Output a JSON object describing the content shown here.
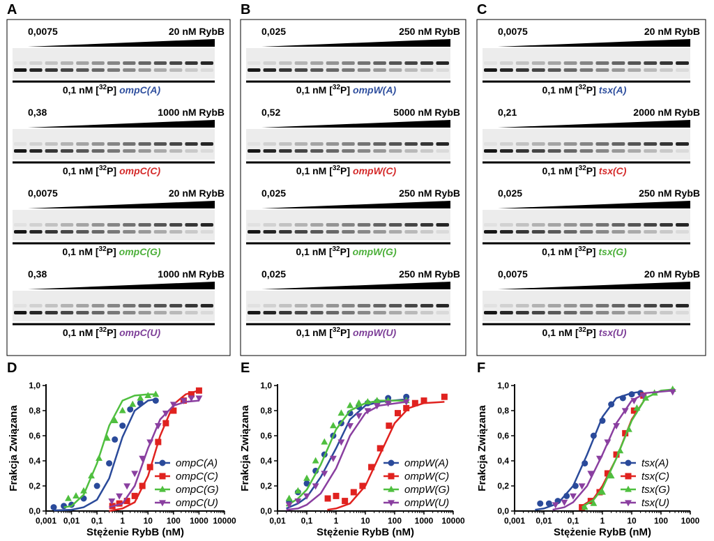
{
  "gels": [
    {
      "panel": "A",
      "blots": [
        {
          "low": "0,0075",
          "high": "20 nM RybB",
          "probe": "0,1 nM [",
          "isotope": "32",
          "element": "P]",
          "target": "ompC(A)",
          "target_color": "#2f4f9e"
        },
        {
          "low": "0,38",
          "high": "1000 nM RybB",
          "probe": "0,1 nM [",
          "isotope": "32",
          "element": "P]",
          "target": "ompC(C)",
          "target_color": "#d42a2a"
        },
        {
          "low": "0,0075",
          "high": "20 nM RybB",
          "probe": "0,1 nM [",
          "isotope": "32",
          "element": "P]",
          "target": "ompC(G)",
          "target_color": "#4caf3a"
        },
        {
          "low": "0,38",
          "high": "1000 nM RybB",
          "probe": "0,1 nM [",
          "isotope": "32",
          "element": "P]",
          "target": "ompC(U)",
          "target_color": "#7d3f98"
        }
      ]
    },
    {
      "panel": "B",
      "blots": [
        {
          "low": "0,025",
          "high": "250 nM RybB",
          "probe": "0,1 nM [",
          "isotope": "32",
          "element": "P]",
          "target": "ompW(A)",
          "target_color": "#2f4f9e"
        },
        {
          "low": "0,52",
          "high": "5000 nM RybB",
          "probe": "0,1 nM [",
          "isotope": "32",
          "element": "P]",
          "target": "ompW(C)",
          "target_color": "#d42a2a"
        },
        {
          "low": "0,025",
          "high": "250 nM RybB",
          "probe": "0,1 nM [",
          "isotope": "32",
          "element": "P]",
          "target": "ompW(G)",
          "target_color": "#4caf3a"
        },
        {
          "low": "0,025",
          "high": "250 nM RybB",
          "probe": "0,1 nM [",
          "isotope": "32",
          "element": "P]",
          "target": "ompW(U)",
          "target_color": "#7d3f98"
        }
      ]
    },
    {
      "panel": "C",
      "blots": [
        {
          "low": "0,0075",
          "high": "20 nM RybB",
          "probe": "0,1 nM [",
          "isotope": "32",
          "element": "P]",
          "target": "tsx(A)",
          "target_color": "#2f4f9e"
        },
        {
          "low": "0,21",
          "high": "2000 nM RybB",
          "probe": "0,1 nM [",
          "isotope": "32",
          "element": "P]",
          "target": "tsx(C)",
          "target_color": "#d42a2a"
        },
        {
          "low": "0,025",
          "high": "250 nM RybB",
          "probe": "0,1 nM [",
          "isotope": "32",
          "element": "P]",
          "target": "tsx(G)",
          "target_color": "#4caf3a"
        },
        {
          "low": "0,0075",
          "high": "20 nM RybB",
          "probe": "0,1 nM [",
          "isotope": "32",
          "element": "P]",
          "target": "tsx(U)",
          "target_color": "#7d3f98"
        }
      ]
    }
  ],
  "chart_data": [
    {
      "type": "scatter",
      "panel": "D",
      "x_label": "Stężenie RybB (nM)",
      "y_label": "Frakcja Związana",
      "log_x": true,
      "legend": "lower right",
      "xlim": [
        0.001,
        10000
      ],
      "ylim": [
        0,
        1.0
      ],
      "xticks": [
        {
          "value": 0.001,
          "label": "0,001"
        },
        {
          "value": 0.01,
          "label": "0,01"
        },
        {
          "value": 0.1,
          "label": "0,1"
        },
        1,
        10,
        100,
        1000,
        10000
      ],
      "yticks": [
        {
          "value": 0,
          "label": "0,0"
        },
        {
          "value": 0.2,
          "label": "0,2"
        },
        {
          "value": 0.4,
          "label": "0,4"
        },
        {
          "value": 0.6,
          "label": "0,6"
        },
        {
          "value": 0.8,
          "label": "0,8"
        },
        {
          "value": 1.0,
          "label": "1,0"
        }
      ],
      "series": [
        {
          "name": "ompC(A)",
          "color": "#2a4a9a",
          "marker": "circle",
          "x": [
            0.002,
            0.005,
            0.01,
            0.03,
            0.1,
            0.3,
            0.5,
            1,
            2,
            5,
            20
          ],
          "values": [
            0.03,
            0.04,
            0.05,
            0.1,
            0.2,
            0.38,
            0.57,
            0.68,
            0.81,
            0.86,
            0.88
          ],
          "curve_x": [
            0.002,
            0.01,
            0.03,
            0.1,
            0.3,
            1,
            3,
            10,
            20
          ],
          "curve_values": [
            0.005,
            0.01,
            0.03,
            0.09,
            0.26,
            0.59,
            0.8,
            0.88,
            0.89
          ]
        },
        {
          "name": "ompC(C)",
          "color": "#e0221f",
          "marker": "square",
          "x": [
            0.4,
            0.75,
            1.5,
            3,
            6,
            12,
            25,
            50,
            100,
            250,
            500,
            1000
          ],
          "values": [
            0.04,
            0.06,
            0.08,
            0.12,
            0.2,
            0.35,
            0.55,
            0.7,
            0.8,
            0.88,
            0.93,
            0.96
          ],
          "curve_x": [
            0.3,
            1,
            3,
            10,
            30,
            100,
            300,
            1000
          ],
          "curve_values": [
            0.0,
            0.02,
            0.07,
            0.28,
            0.6,
            0.85,
            0.93,
            0.96
          ]
        },
        {
          "name": "ompC(G)",
          "color": "#4fbf3f",
          "marker": "triangle-up",
          "x": [
            0.0075,
            0.015,
            0.03,
            0.06,
            0.12,
            0.25,
            0.5,
            1,
            2.5,
            5,
            10,
            20
          ],
          "values": [
            0.1,
            0.12,
            0.16,
            0.28,
            0.42,
            0.58,
            0.72,
            0.8,
            0.85,
            0.9,
            0.92,
            0.93
          ],
          "curve_x": [
            0.005,
            0.01,
            0.03,
            0.1,
            0.3,
            1,
            3,
            10,
            20
          ],
          "curve_values": [
            0.03,
            0.04,
            0.13,
            0.38,
            0.68,
            0.88,
            0.92,
            0.93,
            0.93
          ]
        },
        {
          "name": "ompC(U)",
          "color": "#8a3fa0",
          "marker": "triangle-down",
          "x": [
            0.38,
            0.75,
            1.5,
            3,
            6,
            12,
            25,
            50,
            100,
            250,
            500,
            1000
          ],
          "values": [
            0.08,
            0.12,
            0.2,
            0.3,
            0.42,
            0.55,
            0.68,
            0.78,
            0.85,
            0.88,
            0.9,
            0.9
          ],
          "curve_x": [
            0.3,
            1,
            3,
            10,
            30,
            100,
            300,
            1000
          ],
          "curve_values": [
            0.03,
            0.06,
            0.2,
            0.5,
            0.73,
            0.84,
            0.87,
            0.88
          ]
        }
      ]
    },
    {
      "type": "scatter",
      "panel": "E",
      "x_label": "Stężenie RybB (nM)",
      "y_label": "Frakcja Związana",
      "log_x": true,
      "legend": "lower right",
      "xlim": [
        0.01,
        10000
      ],
      "ylim": [
        0,
        1.0
      ],
      "xticks": [
        {
          "value": 0.01,
          "label": "0,01"
        },
        {
          "value": 0.1,
          "label": "0,1"
        },
        1,
        10,
        100,
        1000,
        10000
      ],
      "yticks": [
        {
          "value": 0,
          "label": "0,0"
        },
        {
          "value": 0.2,
          "label": "0,2"
        },
        {
          "value": 0.4,
          "label": "0,4"
        },
        {
          "value": 0.6,
          "label": "0,6"
        },
        {
          "value": 0.8,
          "label": "0,8"
        },
        {
          "value": 1.0,
          "label": "1,0"
        }
      ],
      "series": [
        {
          "name": "ompW(A)",
          "color": "#2a4a9a",
          "marker": "circle",
          "x": [
            0.025,
            0.05,
            0.1,
            0.2,
            0.4,
            0.8,
            1.5,
            3,
            6,
            12,
            25,
            60,
            250
          ],
          "values": [
            0.08,
            0.15,
            0.22,
            0.32,
            0.45,
            0.6,
            0.7,
            0.78,
            0.83,
            0.86,
            0.87,
            0.9,
            0.91
          ],
          "curve_x": [
            0.02,
            0.05,
            0.1,
            0.3,
            1,
            3,
            10,
            30,
            250
          ],
          "curve_values": [
            0.02,
            0.06,
            0.11,
            0.27,
            0.5,
            0.73,
            0.84,
            0.87,
            0.89
          ]
        },
        {
          "name": "ompW(C)",
          "color": "#e0221f",
          "marker": "square",
          "x": [
            0.52,
            1,
            2,
            4,
            8,
            16,
            32,
            64,
            128,
            250,
            500,
            1000,
            5000
          ],
          "values": [
            0.1,
            0.12,
            0.08,
            0.15,
            0.2,
            0.35,
            0.5,
            0.68,
            0.78,
            0.82,
            0.86,
            0.88,
            0.91
          ],
          "curve_x": [
            0.5,
            1,
            3,
            10,
            30,
            100,
            300,
            1000,
            5000
          ],
          "curve_values": [
            0.01,
            0.02,
            0.06,
            0.2,
            0.44,
            0.7,
            0.82,
            0.86,
            0.87
          ]
        },
        {
          "name": "ompW(G)",
          "color": "#4fbf3f",
          "marker": "triangle-up",
          "x": [
            0.025,
            0.05,
            0.1,
            0.2,
            0.4,
            0.8,
            1.5,
            3,
            6,
            12,
            25,
            60,
            250
          ],
          "values": [
            0.1,
            0.16,
            0.26,
            0.4,
            0.55,
            0.68,
            0.78,
            0.84,
            0.86,
            0.87,
            0.88,
            0.88,
            0.88
          ],
          "curve_x": [
            0.02,
            0.05,
            0.1,
            0.3,
            1,
            3,
            10,
            30,
            250
          ],
          "curve_values": [
            0.04,
            0.1,
            0.17,
            0.37,
            0.65,
            0.8,
            0.86,
            0.88,
            0.88
          ]
        },
        {
          "name": "ompW(U)",
          "color": "#8a3fa0",
          "marker": "triangle-down",
          "x": [
            0.025,
            0.05,
            0.1,
            0.2,
            0.4,
            0.8,
            1.5,
            3,
            6,
            12,
            25,
            60,
            250
          ],
          "values": [
            0.05,
            0.08,
            0.12,
            0.2,
            0.3,
            0.42,
            0.55,
            0.68,
            0.76,
            0.8,
            0.84,
            0.86,
            0.87
          ],
          "curve_x": [
            0.02,
            0.05,
            0.1,
            0.3,
            1,
            3,
            10,
            30,
            250
          ],
          "curve_values": [
            0.01,
            0.02,
            0.05,
            0.14,
            0.34,
            0.6,
            0.78,
            0.84,
            0.87
          ]
        }
      ]
    },
    {
      "type": "scatter",
      "panel": "F",
      "x_label": "Stężenie RybB (nM)",
      "y_label": "Frakcja Związana",
      "log_x": true,
      "legend": "lower right",
      "xlim": [
        0.001,
        1000
      ],
      "ylim": [
        0,
        1.0
      ],
      "xticks": [
        {
          "value": 0.001,
          "label": "0,001"
        },
        {
          "value": 0.01,
          "label": "0,01"
        },
        {
          "value": 0.1,
          "label": "0,1"
        },
        1,
        10,
        100,
        1000
      ],
      "yticks": [
        {
          "value": 0,
          "label": "0,0"
        },
        {
          "value": 0.2,
          "label": "0,2"
        },
        {
          "value": 0.4,
          "label": "0,4"
        },
        {
          "value": 0.6,
          "label": "0,6"
        },
        {
          "value": 0.8,
          "label": "0,8"
        },
        {
          "value": 1.0,
          "label": "1,0"
        }
      ],
      "series": [
        {
          "name": "tsx(A)",
          "color": "#2a4a9a",
          "marker": "circle",
          "x": [
            0.0075,
            0.015,
            0.03,
            0.06,
            0.12,
            0.25,
            0.5,
            1,
            2,
            5,
            10,
            20
          ],
          "values": [
            0.06,
            0.06,
            0.08,
            0.12,
            0.2,
            0.38,
            0.6,
            0.72,
            0.85,
            0.9,
            0.93,
            0.94
          ],
          "curve_x": [
            0.005,
            0.01,
            0.03,
            0.1,
            0.3,
            1,
            3,
            10,
            20
          ],
          "curve_values": [
            0.01,
            0.02,
            0.06,
            0.2,
            0.45,
            0.75,
            0.9,
            0.94,
            0.95
          ]
        },
        {
          "name": "tsx(C)",
          "color": "#e0221f",
          "marker": "square",
          "x": [
            0.2,
            0.4,
            0.8,
            1.5,
            3,
            6,
            12,
            25
          ],
          "values": [
            0.03,
            0.08,
            0.15,
            0.3,
            0.45,
            0.62,
            0.8,
            0.92
          ],
          "curve_x": [
            0.2,
            0.5,
            1,
            3,
            10,
            30
          ],
          "curve_values": [
            0.04,
            0.1,
            0.2,
            0.42,
            0.73,
            0.9
          ]
        },
        {
          "name": "tsx(G)",
          "color": "#4fbf3f",
          "marker": "triangle-up",
          "x": [
            0.25,
            0.5,
            1,
            2,
            4,
            8,
            15,
            30,
            60,
            250
          ],
          "values": [
            0.03,
            0.06,
            0.15,
            0.28,
            0.48,
            0.65,
            0.82,
            0.9,
            0.94,
            0.97
          ],
          "curve_x": [
            0.2,
            0.5,
            1,
            3,
            10,
            30,
            100,
            300
          ],
          "curve_values": [
            0.03,
            0.09,
            0.18,
            0.42,
            0.72,
            0.9,
            0.96,
            0.97
          ]
        },
        {
          "name": "tsx(U)",
          "color": "#8a3fa0",
          "marker": "triangle-down",
          "x": [
            0.025,
            0.05,
            0.1,
            0.2,
            0.4,
            0.8,
            1.5,
            3,
            6,
            12,
            25,
            250
          ],
          "values": [
            0.05,
            0.07,
            0.12,
            0.2,
            0.3,
            0.42,
            0.55,
            0.68,
            0.8,
            0.88,
            0.92,
            0.95
          ],
          "curve_x": [
            0.02,
            0.05,
            0.1,
            0.3,
            1,
            3,
            10,
            30,
            250
          ],
          "curve_values": [
            0.01,
            0.03,
            0.07,
            0.2,
            0.45,
            0.7,
            0.88,
            0.94,
            0.96
          ]
        }
      ]
    }
  ]
}
